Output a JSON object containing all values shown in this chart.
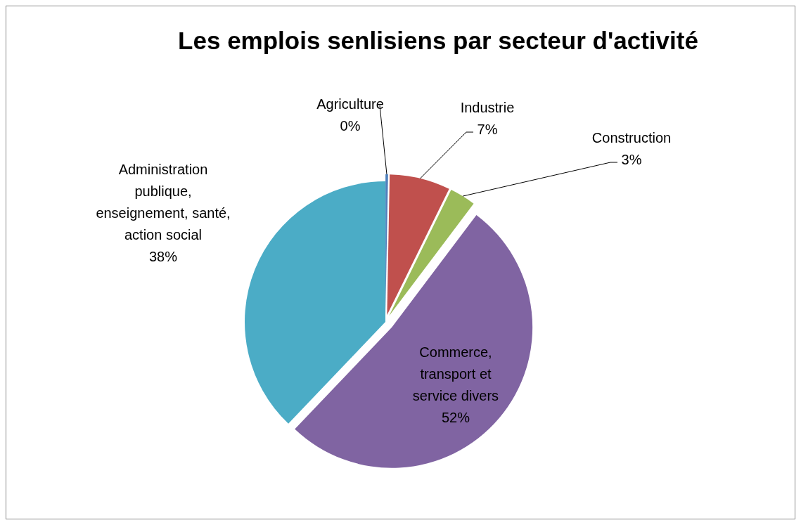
{
  "chart_data": {
    "type": "pie",
    "title": "Les emplois senlisiens par secteur d'activité",
    "categories": [
      "Agriculture",
      "Industrie",
      "Construction",
      "Commerce, transport et service divers",
      "Administration publique, enseignement, santé, action social"
    ],
    "values": [
      0.3,
      7,
      3,
      52,
      38
    ],
    "value_labels": [
      "0%",
      "7%",
      "3%",
      "52%",
      "38%"
    ],
    "colors": [
      "#4f81bd",
      "#c0504d",
      "#9bbb59",
      "#8064a2",
      "#4bacc6"
    ]
  }
}
